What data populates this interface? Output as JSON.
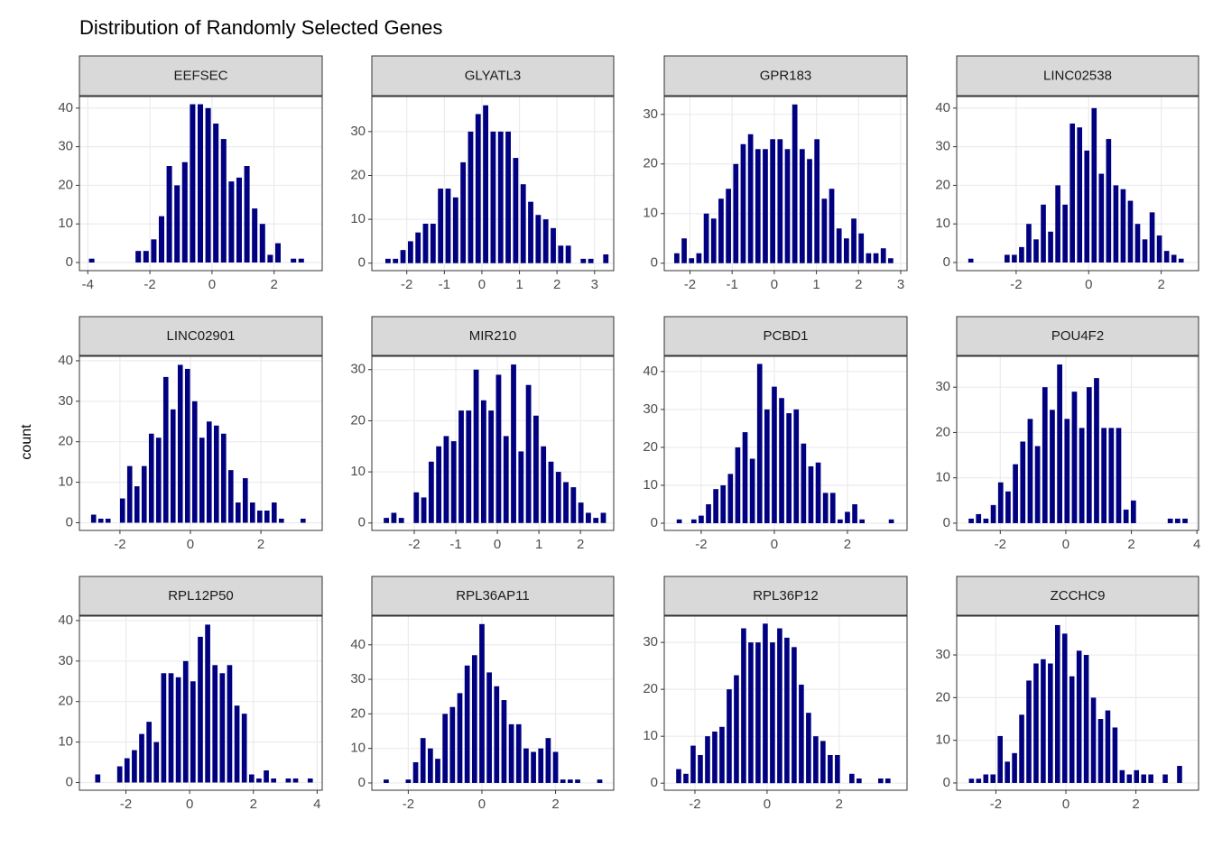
{
  "title": "Distribution of Randomly Selected Genes",
  "y_label": "count",
  "chart_data": [
    {
      "type": "histogram",
      "title": "EEFSEC",
      "color": "#000080",
      "grid": true,
      "bins": [
        -4,
        -3.75,
        -3.5,
        -3.25,
        -3,
        -2.75,
        -2.5,
        -2.25,
        -2,
        -1.75,
        -1.5,
        -1.25,
        -1,
        -0.75,
        -0.5,
        -0.25,
        0,
        0.25,
        0.5,
        0.75,
        1,
        1.25,
        1.5,
        1.75,
        2,
        2.25,
        2.5,
        2.75,
        3,
        3.25,
        3.5
      ],
      "values": [
        1,
        0,
        0,
        0,
        0,
        0,
        3,
        3,
        6,
        12,
        25,
        20,
        26,
        41,
        41,
        40,
        36,
        32,
        21,
        22,
        25,
        14,
        10,
        2,
        5,
        0,
        1,
        1,
        0,
        0
      ],
      "xlim": [
        -4.27,
        3.55
      ],
      "xticks": [
        -4,
        -2,
        0,
        2
      ],
      "ylim": [
        -2.1,
        43
      ],
      "yticks": [
        0,
        10,
        20,
        30,
        40
      ]
    },
    {
      "type": "histogram",
      "title": "GLYATL3",
      "color": "#000080",
      "grid": true,
      "bins": [
        -2.6,
        -2.4,
        -2.2,
        -2,
        -1.8,
        -1.6,
        -1.4,
        -1.2,
        -1,
        -0.8,
        -0.6,
        -0.4,
        -0.2,
        0,
        0.2,
        0.4,
        0.6,
        0.8,
        1,
        1.2,
        1.4,
        1.6,
        1.8,
        2,
        2.2,
        2.4,
        2.6,
        2.8,
        3,
        3.2,
        3.4
      ],
      "values": [
        1,
        1,
        3,
        5,
        7,
        9,
        9,
        17,
        17,
        15,
        23,
        30,
        34,
        36,
        30,
        30,
        30,
        24,
        18,
        14,
        11,
        10,
        8,
        4,
        4,
        0,
        1,
        1,
        0,
        2
      ],
      "xlim": [
        -2.93,
        3.51
      ],
      "xticks": [
        -2,
        -1,
        0,
        1,
        2,
        3
      ],
      "ylim": [
        -1.7,
        38
      ],
      "yticks": [
        0,
        10,
        20,
        30
      ]
    },
    {
      "type": "histogram",
      "title": "GPR183",
      "color": "#000080",
      "grid": true,
      "bins": [
        -2.4,
        -2.225,
        -2.05,
        -1.875,
        -1.7,
        -1.525,
        -1.35,
        -1.175,
        -1,
        -0.825,
        -0.65,
        -0.475,
        -0.3,
        -0.125,
        0.05,
        0.225,
        0.4,
        0.575,
        0.75,
        0.925,
        1.1,
        1.275,
        1.45,
        1.625,
        1.8,
        1.975,
        2.15,
        2.325,
        2.5,
        2.675,
        2.85
      ],
      "values": [
        2,
        5,
        1,
        2,
        10,
        9,
        13,
        15,
        20,
        24,
        26,
        23,
        23,
        25,
        25,
        23,
        32,
        23,
        21,
        25,
        13,
        15,
        7,
        5,
        9,
        6,
        2,
        2,
        3,
        1
      ],
      "xlim": [
        -2.61,
        3.15
      ],
      "xticks": [
        -2,
        -1,
        0,
        1,
        2,
        3
      ],
      "ylim": [
        -1.5,
        33.6
      ],
      "yticks": [
        0,
        10,
        20,
        30
      ]
    },
    {
      "type": "histogram",
      "title": "LINC02538",
      "color": "#000080",
      "grid": true,
      "bins": [
        -3.35,
        -3.15,
        -2.95,
        -2.75,
        -2.55,
        -2.35,
        -2.15,
        -1.95,
        -1.75,
        -1.55,
        -1.35,
        -1.15,
        -0.95,
        -0.75,
        -0.55,
        -0.35,
        -0.15,
        0.05,
        0.25,
        0.45,
        0.65,
        0.85,
        1.05,
        1.25,
        1.45,
        1.65,
        1.85,
        2.05,
        2.25,
        2.45,
        2.65
      ],
      "values": [
        1,
        0,
        0,
        0,
        0,
        2,
        2,
        4,
        10,
        6,
        15,
        8,
        20,
        15,
        36,
        35,
        29,
        40,
        23,
        32,
        20,
        19,
        16,
        10,
        6,
        13,
        7,
        3,
        2,
        1
      ],
      "xlim": [
        -3.64,
        3.03
      ],
      "xticks": [
        -2,
        0,
        2
      ],
      "ylim": [
        -2.1,
        43
      ],
      "yticks": [
        0,
        10,
        20,
        30,
        40
      ]
    },
    {
      "type": "histogram",
      "title": "LINC02901",
      "color": "#000080",
      "grid": true,
      "bins": [
        -2.85,
        -2.645,
        -2.44,
        -2.235,
        -2.03,
        -1.825,
        -1.62,
        -1.415,
        -1.21,
        -1.005,
        -0.8,
        -0.595,
        -0.39,
        -0.185,
        0.02,
        0.225,
        0.43,
        0.635,
        0.84,
        1.045,
        1.25,
        1.455,
        1.66,
        1.865,
        2.07,
        2.275,
        2.48,
        2.685,
        2.89,
        3.095,
        3.3
      ],
      "values": [
        2,
        1,
        1,
        0,
        6,
        14,
        9,
        14,
        22,
        21,
        36,
        28,
        39,
        38,
        30,
        21,
        25,
        24,
        22,
        13,
        5,
        11,
        5,
        3,
        3,
        5,
        1,
        0,
        0,
        1
      ],
      "xlim": [
        -3.15,
        3.74
      ],
      "xticks": [
        -2,
        0,
        2
      ],
      "ylim": [
        -1.9,
        41.1
      ],
      "yticks": [
        0,
        10,
        20,
        30,
        40
      ]
    },
    {
      "type": "histogram",
      "title": "MIR210",
      "color": "#000080",
      "grid": true,
      "bins": [
        -2.76,
        -2.58,
        -2.4,
        -2.22,
        -2.04,
        -1.86,
        -1.68,
        -1.5,
        -1.32,
        -1.14,
        -0.96,
        -0.78,
        -0.6,
        -0.42,
        -0.24,
        -0.06,
        0.12,
        0.3,
        0.48,
        0.66,
        0.84,
        1.02,
        1.2,
        1.38,
        1.56,
        1.74,
        1.92,
        2.1,
        2.28,
        2.46,
        2.64
      ],
      "values": [
        1,
        2,
        1,
        0,
        6,
        5,
        12,
        15,
        17,
        16,
        22,
        22,
        30,
        24,
        22,
        29,
        17,
        31,
        14,
        27,
        21,
        15,
        12,
        10,
        8,
        7,
        4,
        2,
        1,
        2
      ],
      "xlim": [
        -3.02,
        2.8
      ],
      "xticks": [
        -2,
        -1,
        0,
        1,
        2
      ],
      "ylim": [
        -1.45,
        32.6
      ],
      "yticks": [
        0,
        10,
        20,
        30
      ]
    },
    {
      "type": "histogram",
      "title": "PCBD1",
      "color": "#000080",
      "grid": true,
      "bins": [
        -2.7,
        -2.5,
        -2.3,
        -2.1,
        -1.9,
        -1.7,
        -1.5,
        -1.3,
        -1.1,
        -0.9,
        -0.7,
        -0.5,
        -0.3,
        -0.1,
        0.1,
        0.3,
        0.5,
        0.7,
        0.9,
        1.1,
        1.3,
        1.5,
        1.7,
        1.9,
        2.1,
        2.3,
        2.5,
        2.7,
        2.9,
        3.1,
        3.3
      ],
      "values": [
        1,
        0,
        1,
        2,
        5,
        9,
        10,
        13,
        20,
        24,
        17,
        42,
        30,
        36,
        33,
        29,
        30,
        21,
        15,
        16,
        8,
        8,
        1,
        3,
        5,
        1,
        0,
        0,
        0,
        1
      ],
      "xlim": [
        -3.01,
        3.63
      ],
      "xticks": [
        -2,
        0,
        2
      ],
      "ylim": [
        -1.9,
        44
      ],
      "yticks": [
        0,
        10,
        20,
        30,
        40
      ]
    },
    {
      "type": "histogram",
      "title": "POU4F2",
      "color": "#000080",
      "grid": true,
      "bins": [
        -3,
        -2.775,
        -2.55,
        -2.325,
        -2.1,
        -1.875,
        -1.65,
        -1.425,
        -1.2,
        -0.975,
        -0.75,
        -0.525,
        -0.3,
        -0.075,
        0.15,
        0.375,
        0.6,
        0.825,
        1.05,
        1.275,
        1.5,
        1.725,
        1.95,
        2.175,
        2.4,
        2.625,
        2.85,
        3.075,
        3.3,
        3.525,
        3.75
      ],
      "values": [
        1,
        2,
        1,
        4,
        9,
        7,
        13,
        18,
        23,
        17,
        30,
        25,
        35,
        23,
        29,
        21,
        30,
        32,
        21,
        21,
        21,
        3,
        5,
        0,
        0,
        0,
        0,
        1,
        1,
        1
      ],
      "xlim": [
        -3.33,
        4.05
      ],
      "xticks": [
        -2,
        0,
        2,
        4
      ],
      "ylim": [
        -1.6,
        36.8
      ],
      "yticks": [
        0,
        10,
        20,
        30
      ]
    },
    {
      "type": "histogram",
      "title": "RPL12P50",
      "color": "#000080",
      "grid": true,
      "bins": [
        -3,
        -2.77,
        -2.54,
        -2.31,
        -2.08,
        -1.85,
        -1.62,
        -1.39,
        -1.16,
        -0.93,
        -0.7,
        -0.47,
        -0.24,
        -0.01,
        0.22,
        0.45,
        0.68,
        0.91,
        1.14,
        1.37,
        1.6,
        1.83,
        2.06,
        2.29,
        2.52,
        2.75,
        2.98,
        3.21,
        3.44,
        3.67,
        3.9
      ],
      "values": [
        2,
        0,
        0,
        4,
        6,
        8,
        12,
        15,
        10,
        27,
        27,
        26,
        30,
        25,
        36,
        39,
        29,
        27,
        29,
        19,
        17,
        2,
        1,
        3,
        1,
        0,
        1,
        1,
        0,
        1
      ],
      "xlim": [
        -3.46,
        4.16
      ],
      "xticks": [
        -2,
        0,
        2,
        4
      ],
      "ylim": [
        -1.9,
        41.1
      ],
      "yticks": [
        0,
        10,
        20,
        30,
        40
      ]
    },
    {
      "type": "histogram",
      "title": "RPL36AP11",
      "color": "#000080",
      "grid": true,
      "bins": [
        -2.7,
        -2.5,
        -2.3,
        -2.1,
        -1.9,
        -1.7,
        -1.5,
        -1.3,
        -1.1,
        -0.9,
        -0.7,
        -0.5,
        -0.3,
        -0.1,
        0.1,
        0.3,
        0.5,
        0.7,
        0.9,
        1.1,
        1.3,
        1.5,
        1.7,
        1.9,
        2.1,
        2.3,
        2.5,
        2.7,
        2.9,
        3.1,
        3.3
      ],
      "values": [
        1,
        0,
        0,
        1,
        6,
        13,
        10,
        7,
        20,
        22,
        26,
        34,
        37,
        46,
        32,
        28,
        24,
        17,
        17,
        10,
        9,
        10,
        13,
        9,
        1,
        1,
        1,
        0,
        0,
        1
      ],
      "xlim": [
        -2.99,
        3.58
      ],
      "xticks": [
        -2,
        0,
        2
      ],
      "ylim": [
        -2.1,
        48.3
      ],
      "yticks": [
        0,
        10,
        20,
        30,
        40
      ]
    },
    {
      "type": "histogram",
      "title": "RPL36P12",
      "color": "#000080",
      "grid": true,
      "bins": [
        -2.55,
        -2.35,
        -2.15,
        -1.95,
        -1.75,
        -1.55,
        -1.35,
        -1.15,
        -0.95,
        -0.75,
        -0.55,
        -0.35,
        -0.15,
        0.05,
        0.25,
        0.45,
        0.65,
        0.85,
        1.05,
        1.25,
        1.45,
        1.65,
        1.85,
        2.05,
        2.25,
        2.45,
        2.65,
        2.85,
        3.05,
        3.25,
        3.45
      ],
      "values": [
        3,
        2,
        8,
        6,
        10,
        11,
        12,
        20,
        23,
        33,
        30,
        30,
        34,
        30,
        33,
        31,
        29,
        21,
        15,
        10,
        9,
        6,
        6,
        0,
        2,
        1,
        0,
        0,
        1,
        1
      ],
      "xlim": [
        -2.85,
        3.88
      ],
      "xticks": [
        -2,
        0,
        2
      ],
      "ylim": [
        -1.5,
        35.6
      ],
      "yticks": [
        0,
        10,
        20,
        30
      ]
    },
    {
      "type": "histogram",
      "title": "ZCCHC9",
      "color": "#000080",
      "grid": true,
      "bins": [
        -2.8,
        -2.595,
        -2.39,
        -2.185,
        -1.98,
        -1.775,
        -1.57,
        -1.365,
        -1.16,
        -0.955,
        -0.75,
        -0.545,
        -0.34,
        -0.135,
        0.07,
        0.275,
        0.48,
        0.685,
        0.89,
        1.095,
        1.3,
        1.505,
        1.71,
        1.915,
        2.12,
        2.325,
        2.53,
        2.735,
        2.94,
        3.145,
        3.35
      ],
      "values": [
        1,
        1,
        2,
        2,
        11,
        5,
        7,
        16,
        24,
        28,
        29,
        28,
        37,
        35,
        25,
        31,
        30,
        20,
        15,
        17,
        13,
        3,
        2,
        3,
        2,
        2,
        0,
        2,
        0,
        4
      ],
      "xlim": [
        -3.12,
        3.79
      ],
      "xticks": [
        -2,
        0,
        2
      ],
      "ylim": [
        -1.7,
        39.1
      ],
      "yticks": [
        0,
        10,
        20,
        30
      ]
    }
  ]
}
